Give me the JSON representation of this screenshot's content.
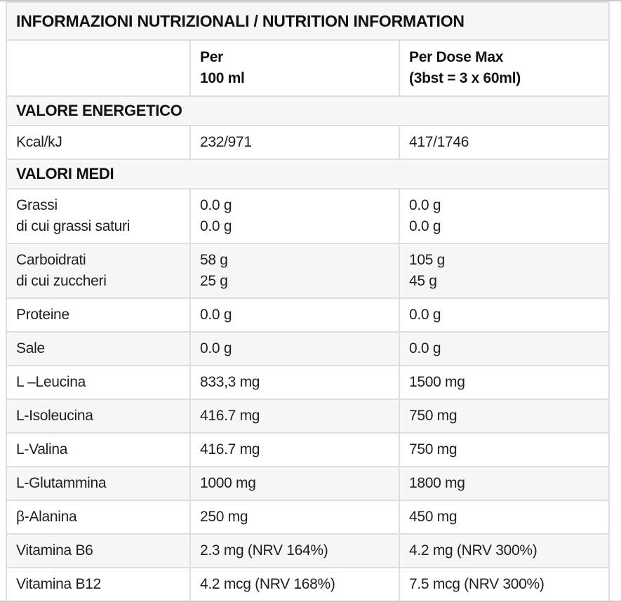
{
  "table": {
    "title": "INFORMAZIONI NUTRIZIONALI / NUTRITION INFORMATION",
    "header": {
      "label_column": "",
      "per_100ml": "Per\n100 ml",
      "per_dose_max": "Per Dose Max\n(3bst = 3 x 60ml)"
    },
    "rows": [
      {
        "type": "section",
        "label": "VALORE ENERGETICO"
      },
      {
        "type": "data",
        "label": "Kcal/kJ",
        "per_100ml": "232/971",
        "per_dose_max": "417/1746"
      },
      {
        "type": "section",
        "label": "VALORI MEDI"
      },
      {
        "type": "data",
        "label": "Grassi\ndi cui grassi saturi",
        "per_100ml": "0.0 g\n0.0 g",
        "per_dose_max": "0.0 g\n0.0 g"
      },
      {
        "type": "data",
        "label": "Carboidrati\ndi cui zuccheri",
        "per_100ml": "58 g\n25 g",
        "per_dose_max": "105 g\n45 g"
      },
      {
        "type": "data",
        "label": "Proteine",
        "per_100ml": "0.0 g",
        "per_dose_max": "0.0 g"
      },
      {
        "type": "data",
        "label": "Sale",
        "per_100ml": "0.0 g",
        "per_dose_max": "0.0 g"
      },
      {
        "type": "data",
        "label": "L –Leucina",
        "per_100ml": "833,3 mg",
        "per_dose_max": "1500 mg"
      },
      {
        "type": "data",
        "label": "L-Isoleucina",
        "per_100ml": "416.7 mg",
        "per_dose_max": "750 mg"
      },
      {
        "type": "data",
        "label": "L-Valina",
        "per_100ml": "416.7 mg",
        "per_dose_max": "750 mg"
      },
      {
        "type": "data",
        "label": "L-Glutammina",
        "per_100ml": "1000 mg",
        "per_dose_max": "1800 mg"
      },
      {
        "type": "data",
        "label": "β-Alanina",
        "per_100ml": "250 mg",
        "per_dose_max": "450 mg"
      },
      {
        "type": "data",
        "label": "Vitamina B6",
        "per_100ml": "2.3 mg (NRV 164%)",
        "per_dose_max": "4.2 mg (NRV 300%)"
      },
      {
        "type": "data",
        "label": "Vitamina B12",
        "per_100ml": "4.2 mcg (NRV 168%)",
        "per_dose_max": "7.5 mcg (NRV 300%)"
      }
    ],
    "colors": {
      "stripe_background": "#f7f7f7",
      "cell_border": "#dfdfdf",
      "outer_rule": "#c9c9c9",
      "text": "#1d1d1d"
    }
  }
}
